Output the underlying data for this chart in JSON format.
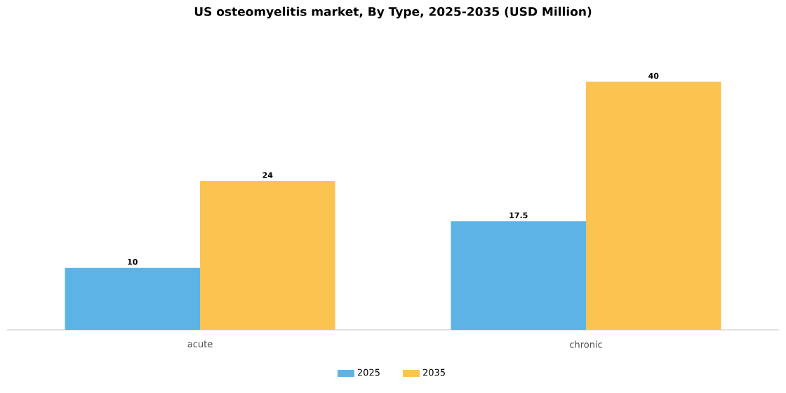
{
  "chart_data": {
    "type": "bar",
    "title": "US osteomyelitis market, By Type, 2025-2035 (USD Million)",
    "categories": [
      "acute",
      "chronic"
    ],
    "series": [
      {
        "name": "2025",
        "color": "#5db3e6",
        "values": [
          10,
          17.5
        ]
      },
      {
        "name": "2035",
        "color": "#fbc34f",
        "values": [
          24,
          40
        ]
      }
    ],
    "data_labels": true,
    "legend": "bottom"
  }
}
